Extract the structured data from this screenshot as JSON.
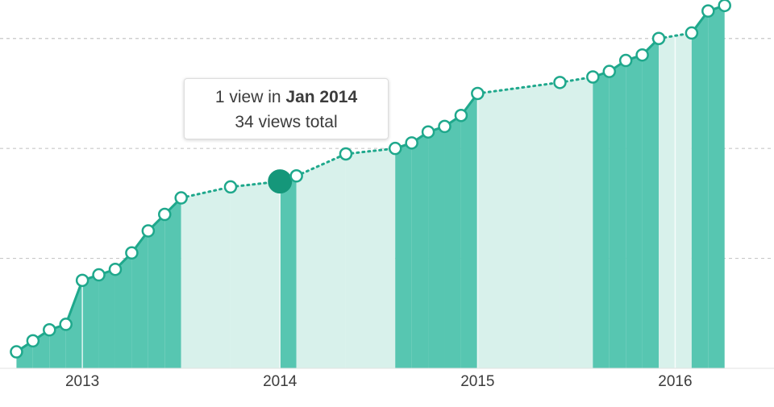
{
  "chart_data": {
    "type": "cumulative-area",
    "x": [
      "2012-09",
      "2012-10",
      "2012-11",
      "2012-12",
      "2013-01",
      "2013-02",
      "2013-03",
      "2013-04",
      "2013-05",
      "2013-06",
      "2013-07",
      "2013-10",
      "2014-01",
      "2014-02",
      "2014-05",
      "2014-08",
      "2014-09",
      "2014-10",
      "2014-11",
      "2014-12",
      "2015-01",
      "2015-06",
      "2015-08",
      "2015-09",
      "2015-10",
      "2015-11",
      "2015-12",
      "2016-02",
      "2016-03",
      "2016-04"
    ],
    "values": [
      3,
      5,
      7,
      8,
      16,
      17,
      18,
      21,
      25,
      28,
      31,
      33,
      34,
      35,
      39,
      40,
      41,
      43,
      44,
      46,
      50,
      52,
      53,
      54,
      56,
      57,
      60,
      61,
      65,
      66
    ],
    "xlim": [
      "2012-08",
      "2016-07"
    ],
    "xticks": [
      {
        "value": "2013-01",
        "label": "2013"
      },
      {
        "value": "2014-01",
        "label": "2014"
      },
      {
        "value": "2015-01",
        "label": "2015"
      },
      {
        "value": "2016-01",
        "label": "2016"
      }
    ],
    "ylim": [
      0,
      67
    ],
    "yticks": [
      20,
      40,
      60
    ],
    "grid": true,
    "line_color": "#1fa88c",
    "active_fill": "#57c6b1",
    "idle_fill": "#d8f1eb",
    "selected_color": "#15977a",
    "selected": "2014-01",
    "tooltip": {
      "prefix": "1 view in",
      "month": "Jan 2014",
      "total": "34 views total"
    }
  }
}
